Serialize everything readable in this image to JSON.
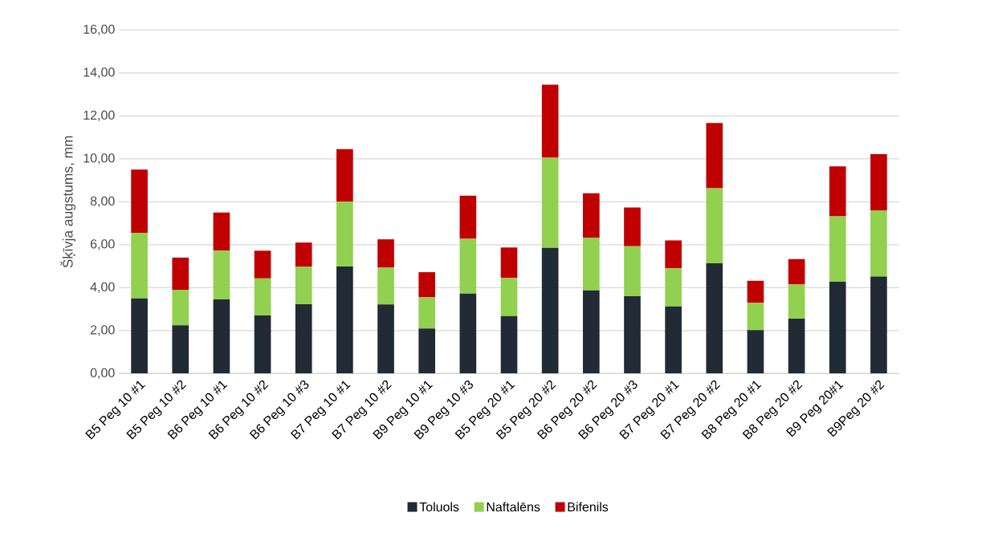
{
  "chart_data": {
    "type": "bar",
    "stacked": true,
    "ylabel": "Šķīvja augstums, mm",
    "categories": [
      "B5 Peg 10 #1",
      "B5 Peg 10 #2",
      "B6 Peg 10 #1",
      "B6 Peg 10 #2",
      "B6 Peg 10 #3",
      "B7 Peg 10 #1",
      "B7 Peg 10 #2",
      "B9 Peg 10 #1",
      "B9 Peg 10 #3",
      "B5 Peg 20 #1",
      "B5 Peg 20 #2",
      "B6 Peg 20 #2",
      "B6 Peg 20 #3",
      "B7 Peg 20 #1",
      "B7 Peg 20 #2",
      "B8 Peg 20 #1",
      "B8 Peg 20 #2",
      "B9 Peg 20#1",
      "B9Peg 20 #2"
    ],
    "series": [
      {
        "name": "Toluols",
        "color": "#222a35",
        "values": [
          3.5,
          2.25,
          3.45,
          2.7,
          3.23,
          4.98,
          3.22,
          2.1,
          3.72,
          2.68,
          5.85,
          3.87,
          3.6,
          3.12,
          5.13,
          2.02,
          2.55,
          4.27,
          4.52
        ]
      },
      {
        "name": "Naftalēns",
        "color": "#92d050",
        "values": [
          3.05,
          1.65,
          2.27,
          1.73,
          1.74,
          3.02,
          1.71,
          1.45,
          2.55,
          1.77,
          4.2,
          2.46,
          2.33,
          1.78,
          3.5,
          1.28,
          1.6,
          3.05,
          3.08
        ]
      },
      {
        "name": "Bifenils",
        "color": "#c00000",
        "values": [
          2.95,
          1.5,
          1.78,
          1.29,
          1.13,
          2.45,
          1.32,
          1.17,
          2.01,
          1.42,
          3.4,
          2.07,
          1.8,
          1.3,
          3.04,
          1.02,
          1.18,
          2.33,
          2.62
        ]
      }
    ],
    "ylim": [
      0,
      16
    ],
    "yticks": [
      {
        "value": 0,
        "label": "0,00"
      },
      {
        "value": 2,
        "label": "2,00"
      },
      {
        "value": 4,
        "label": "4,00"
      },
      {
        "value": 6,
        "label": "6,00"
      },
      {
        "value": 8,
        "label": "8,00"
      },
      {
        "value": 10,
        "label": "10,00"
      },
      {
        "value": 12,
        "label": "12,00"
      },
      {
        "value": 14,
        "label": "14,00"
      },
      {
        "value": 16,
        "label": "16,00"
      }
    ],
    "grid": "y",
    "legend": "bottom"
  }
}
